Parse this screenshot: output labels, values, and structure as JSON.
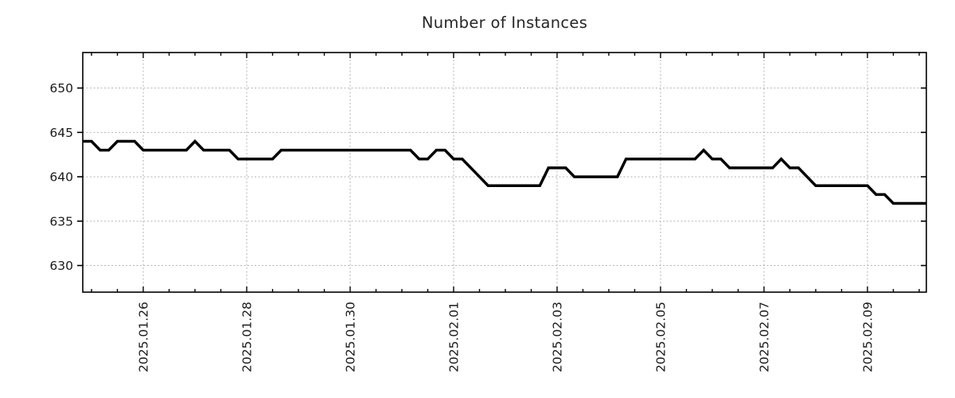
{
  "title": "Number of Instances",
  "colors": {
    "line": "#000000",
    "grid": "#b3b3b3",
    "axis": "#000000",
    "title_text": "#262626",
    "tick_text": "#1a1a1a",
    "background": "#ffffff"
  },
  "chart_data": {
    "type": "line",
    "title": "Number of Instances",
    "legend": "none",
    "grid": "major-both-dashed",
    "line_color": "#000000",
    "line_width": 3.5,
    "x_start": "2025-01-24 20:00",
    "x_step_hours": 4,
    "series_start_day": 24.8333,
    "series_step_days": 0.1666667,
    "values": [
      644,
      644,
      643,
      643,
      644,
      644,
      644,
      643,
      643,
      643,
      643,
      643,
      643,
      644,
      643,
      643,
      643,
      643,
      642,
      642,
      642,
      642,
      642,
      643,
      643,
      643,
      643,
      643,
      643,
      643,
      643,
      643,
      643,
      643,
      643,
      643,
      643,
      643,
      643,
      642,
      642,
      643,
      643,
      642,
      642,
      641,
      640,
      639,
      639,
      639,
      639,
      639,
      639,
      639,
      641,
      641,
      641,
      640,
      640,
      640,
      640,
      640,
      640,
      642,
      642,
      642,
      642,
      642,
      642,
      642,
      642,
      642,
      643,
      642,
      642,
      641,
      641,
      641,
      641,
      641,
      641,
      642,
      641,
      641,
      640,
      639,
      639,
      639,
      639,
      639,
      639,
      639,
      638,
      638,
      637,
      637,
      637,
      637,
      637
    ],
    "x_axis": {
      "tick_labels": [
        "2025.01.26",
        "2025.01.28",
        "2025.01.30",
        "2025.02.01",
        "2025.02.03",
        "2025.02.05",
        "2025.02.07",
        "2025.02.09"
      ],
      "tick_days": [
        26,
        28,
        30,
        32,
        34,
        36,
        38,
        40
      ],
      "minor_tick_step_days": 0.5,
      "domain_days": [
        24.8308,
        41.1385
      ],
      "label_rotation_deg": -90
    },
    "y_axis": {
      "tick_labels": [
        "630",
        "635",
        "640",
        "645",
        "650"
      ],
      "tick_values": [
        630,
        635,
        640,
        645,
        650
      ],
      "domain": [
        627,
        654
      ]
    }
  }
}
